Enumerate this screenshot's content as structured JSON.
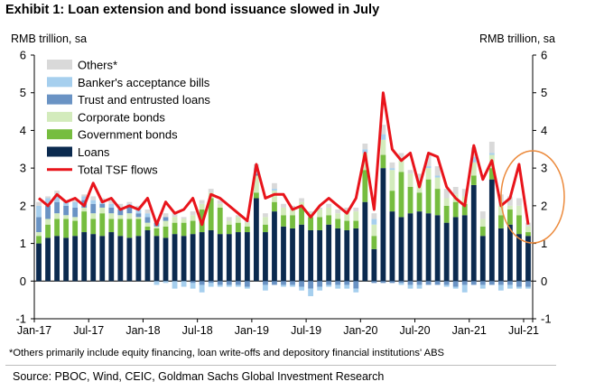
{
  "header": {
    "title": "Exhibit 1: Loan extension and bond issuance slowed in July",
    "y_unit_left": "RMB trillion, sa",
    "y_unit_right": "RMB trillion, sa"
  },
  "footer": {
    "footnote": "*Others primarily include equity financing, loan write-offs and depository financial institutions' ABS",
    "source": "Source: PBOC, Wind, CEIC, Goldman Sachs Global Investment Research"
  },
  "colors": {
    "others": "#d9d9d9",
    "bankers_acceptance": "#a6cfee",
    "trust_entrusted": "#6a93c4",
    "corporate_bonds": "#d3ebbc",
    "government_bonds": "#76bd3f",
    "loans": "#0b2a4f",
    "total_tsf": "#e8141b",
    "highlight_ellipse": "#ec8a3c"
  },
  "chart_data": {
    "type": "bar",
    "subtype": "stacked-bar-with-line",
    "ylim": [
      -1,
      6
    ],
    "yticks": [
      -1,
      0,
      1,
      2,
      3,
      4,
      5,
      6
    ],
    "grid": false,
    "legend_position": "top-left",
    "x_tick_labels": [
      "Jan-17",
      "Jul-17",
      "Jan-18",
      "Jul-18",
      "Jan-19",
      "Jul-19",
      "Jan-20",
      "Jul-20",
      "Jan-21",
      "Jul-21"
    ],
    "x_tick_indices": [
      0,
      6,
      12,
      18,
      24,
      30,
      36,
      42,
      48,
      54
    ],
    "annotation": "highlight-ellipse-around-latest-months",
    "categories": [
      "Jan-17",
      "Feb-17",
      "Mar-17",
      "Apr-17",
      "May-17",
      "Jun-17",
      "Jul-17",
      "Aug-17",
      "Sep-17",
      "Oct-17",
      "Nov-17",
      "Dec-17",
      "Jan-18",
      "Feb-18",
      "Mar-18",
      "Apr-18",
      "May-18",
      "Jun-18",
      "Jul-18",
      "Aug-18",
      "Sep-18",
      "Oct-18",
      "Nov-18",
      "Dec-18",
      "Jan-19",
      "Feb-19",
      "Mar-19",
      "Apr-19",
      "May-19",
      "Jun-19",
      "Jul-19",
      "Aug-19",
      "Sep-19",
      "Oct-19",
      "Nov-19",
      "Dec-19",
      "Jan-20",
      "Feb-20",
      "Mar-20",
      "Apr-20",
      "May-20",
      "Jun-20",
      "Jul-20",
      "Aug-20",
      "Sep-20",
      "Oct-20",
      "Nov-20",
      "Dec-20",
      "Jan-21",
      "Feb-21",
      "Mar-21",
      "Apr-21",
      "May-21",
      "Jun-21",
      "Jul-21"
    ],
    "series": [
      {
        "name": "Loans",
        "color_key": "loans",
        "values": [
          1.0,
          1.15,
          1.2,
          1.15,
          1.2,
          1.3,
          1.25,
          1.2,
          1.3,
          1.2,
          1.15,
          1.2,
          1.35,
          1.2,
          1.15,
          1.25,
          1.2,
          1.25,
          1.3,
          1.35,
          1.25,
          1.25,
          1.3,
          1.3,
          2.2,
          1.3,
          1.85,
          1.45,
          1.4,
          1.5,
          1.35,
          1.35,
          1.5,
          1.4,
          1.35,
          1.4,
          2.1,
          0.85,
          3.0,
          1.85,
          1.7,
          1.8,
          1.85,
          1.8,
          1.75,
          1.55,
          1.7,
          1.75,
          2.55,
          1.2,
          2.7,
          1.4,
          1.5,
          1.25,
          1.2
        ]
      },
      {
        "name": "Government bonds",
        "color_key": "government_bonds",
        "values": [
          0.2,
          0.35,
          0.45,
          0.5,
          0.4,
          0.55,
          0.4,
          0.6,
          0.35,
          0.45,
          0.5,
          0.45,
          0.1,
          0.2,
          0.3,
          0.3,
          0.35,
          0.35,
          0.6,
          0.85,
          0.7,
          0.25,
          0.25,
          0.15,
          0.15,
          0.2,
          0.25,
          0.3,
          0.35,
          0.45,
          0.35,
          0.35,
          0.25,
          0.25,
          0.25,
          0.2,
          0.85,
          0.35,
          0.35,
          0.55,
          1.2,
          0.7,
          0.5,
          0.9,
          0.7,
          0.45,
          0.4,
          0.3,
          0.25,
          0.25,
          0.3,
          0.35,
          0.4,
          0.5,
          0.1
        ]
      },
      {
        "name": "Corporate bonds",
        "color_key": "corporate_bonds",
        "values": [
          0.1,
          0.15,
          0.15,
          0.1,
          0.1,
          0.1,
          0.15,
          0.15,
          0.15,
          0.1,
          0.15,
          0.05,
          0.1,
          0.05,
          0.15,
          0.15,
          0.1,
          0.15,
          0.15,
          0.15,
          0.1,
          0.1,
          0.15,
          0.1,
          0.45,
          0.2,
          0.3,
          0.2,
          0.15,
          0.15,
          0.1,
          0.2,
          0.2,
          0.15,
          0.25,
          0.25,
          0.45,
          0.3,
          0.4,
          0.55,
          0.3,
          0.35,
          0.3,
          0.3,
          0.3,
          0.2,
          0.2,
          0.2,
          0.35,
          0.2,
          0.35,
          0.25,
          0.1,
          0.25,
          0.15
        ]
      },
      {
        "name": "Trust and entrusted loans",
        "color_key": "trust_entrusted",
        "values": [
          0.4,
          0.35,
          0.3,
          0.25,
          0.25,
          0.2,
          0.25,
          0.1,
          0.15,
          0.15,
          0.2,
          0.1,
          0.15,
          0.1,
          0.1,
          0.0,
          0.0,
          -0.05,
          -0.1,
          -0.05,
          -0.1,
          -0.1,
          -0.1,
          -0.15,
          0.05,
          -0.1,
          -0.1,
          -0.1,
          -0.1,
          -0.15,
          -0.2,
          -0.15,
          -0.1,
          -0.1,
          -0.1,
          -0.2,
          0.0,
          -0.05,
          -0.05,
          -0.05,
          -0.05,
          -0.1,
          -0.1,
          -0.1,
          -0.1,
          -0.1,
          -0.15,
          -0.1,
          -0.1,
          -0.1,
          -0.1,
          -0.1,
          -0.1,
          -0.15,
          -0.15
        ]
      },
      {
        "name": "Banker's acceptance bills",
        "color_key": "bankers_acceptance",
        "values": [
          0.3,
          0.2,
          0.2,
          0.1,
          0.15,
          0.1,
          0.1,
          0.05,
          0.1,
          0.05,
          0.05,
          0.1,
          0.1,
          -0.1,
          -0.05,
          -0.2,
          -0.15,
          -0.15,
          -0.2,
          -0.1,
          -0.05,
          -0.05,
          -0.05,
          -0.05,
          0.15,
          -0.15,
          0.05,
          -0.05,
          -0.05,
          -0.1,
          -0.2,
          -0.1,
          -0.05,
          -0.1,
          -0.1,
          -0.1,
          0.1,
          0.15,
          0.15,
          0.05,
          -0.05,
          -0.1,
          -0.1,
          0.05,
          0.05,
          -0.05,
          -0.05,
          -0.2,
          0.15,
          -0.1,
          0.05,
          -0.15,
          -0.1,
          -0.05,
          -0.05
        ]
      },
      {
        "name": "Others*",
        "color_key": "others",
        "values": [
          0.1,
          0.05,
          0.1,
          0.05,
          0.05,
          0.05,
          0.1,
          0.1,
          0.1,
          0.1,
          0.05,
          0.1,
          0.1,
          0.1,
          0.1,
          0.1,
          0.05,
          0.1,
          0.1,
          0.1,
          0.1,
          0.1,
          0.05,
          0.05,
          0.1,
          0.1,
          0.15,
          0.1,
          0.1,
          0.1,
          0.05,
          0.05,
          0.1,
          0.1,
          0.1,
          0.1,
          0.15,
          0.15,
          0.25,
          0.15,
          0.2,
          0.1,
          0.2,
          0.3,
          0.25,
          0.25,
          0.2,
          0.2,
          0.25,
          0.2,
          0.3,
          0.3,
          0.25,
          0.2,
          0.1
        ]
      },
      {
        "name": "Total TSF flows",
        "color_key": "total_tsf",
        "kind": "line",
        "values": [
          2.2,
          2.0,
          2.3,
          2.1,
          2.2,
          2.0,
          2.6,
          2.1,
          2.2,
          1.9,
          2.0,
          1.9,
          2.2,
          1.5,
          2.1,
          1.8,
          1.9,
          2.2,
          1.5,
          2.3,
          2.2,
          2.0,
          1.8,
          1.6,
          3.1,
          2.2,
          2.3,
          2.3,
          1.9,
          2.0,
          1.7,
          2.0,
          2.2,
          2.0,
          1.8,
          2.2,
          3.4,
          1.9,
          5.0,
          3.5,
          3.2,
          3.4,
          2.5,
          3.4,
          3.3,
          2.5,
          2.2,
          2.0,
          3.6,
          2.7,
          3.2,
          2.0,
          2.2,
          3.1,
          1.5
        ]
      }
    ]
  }
}
